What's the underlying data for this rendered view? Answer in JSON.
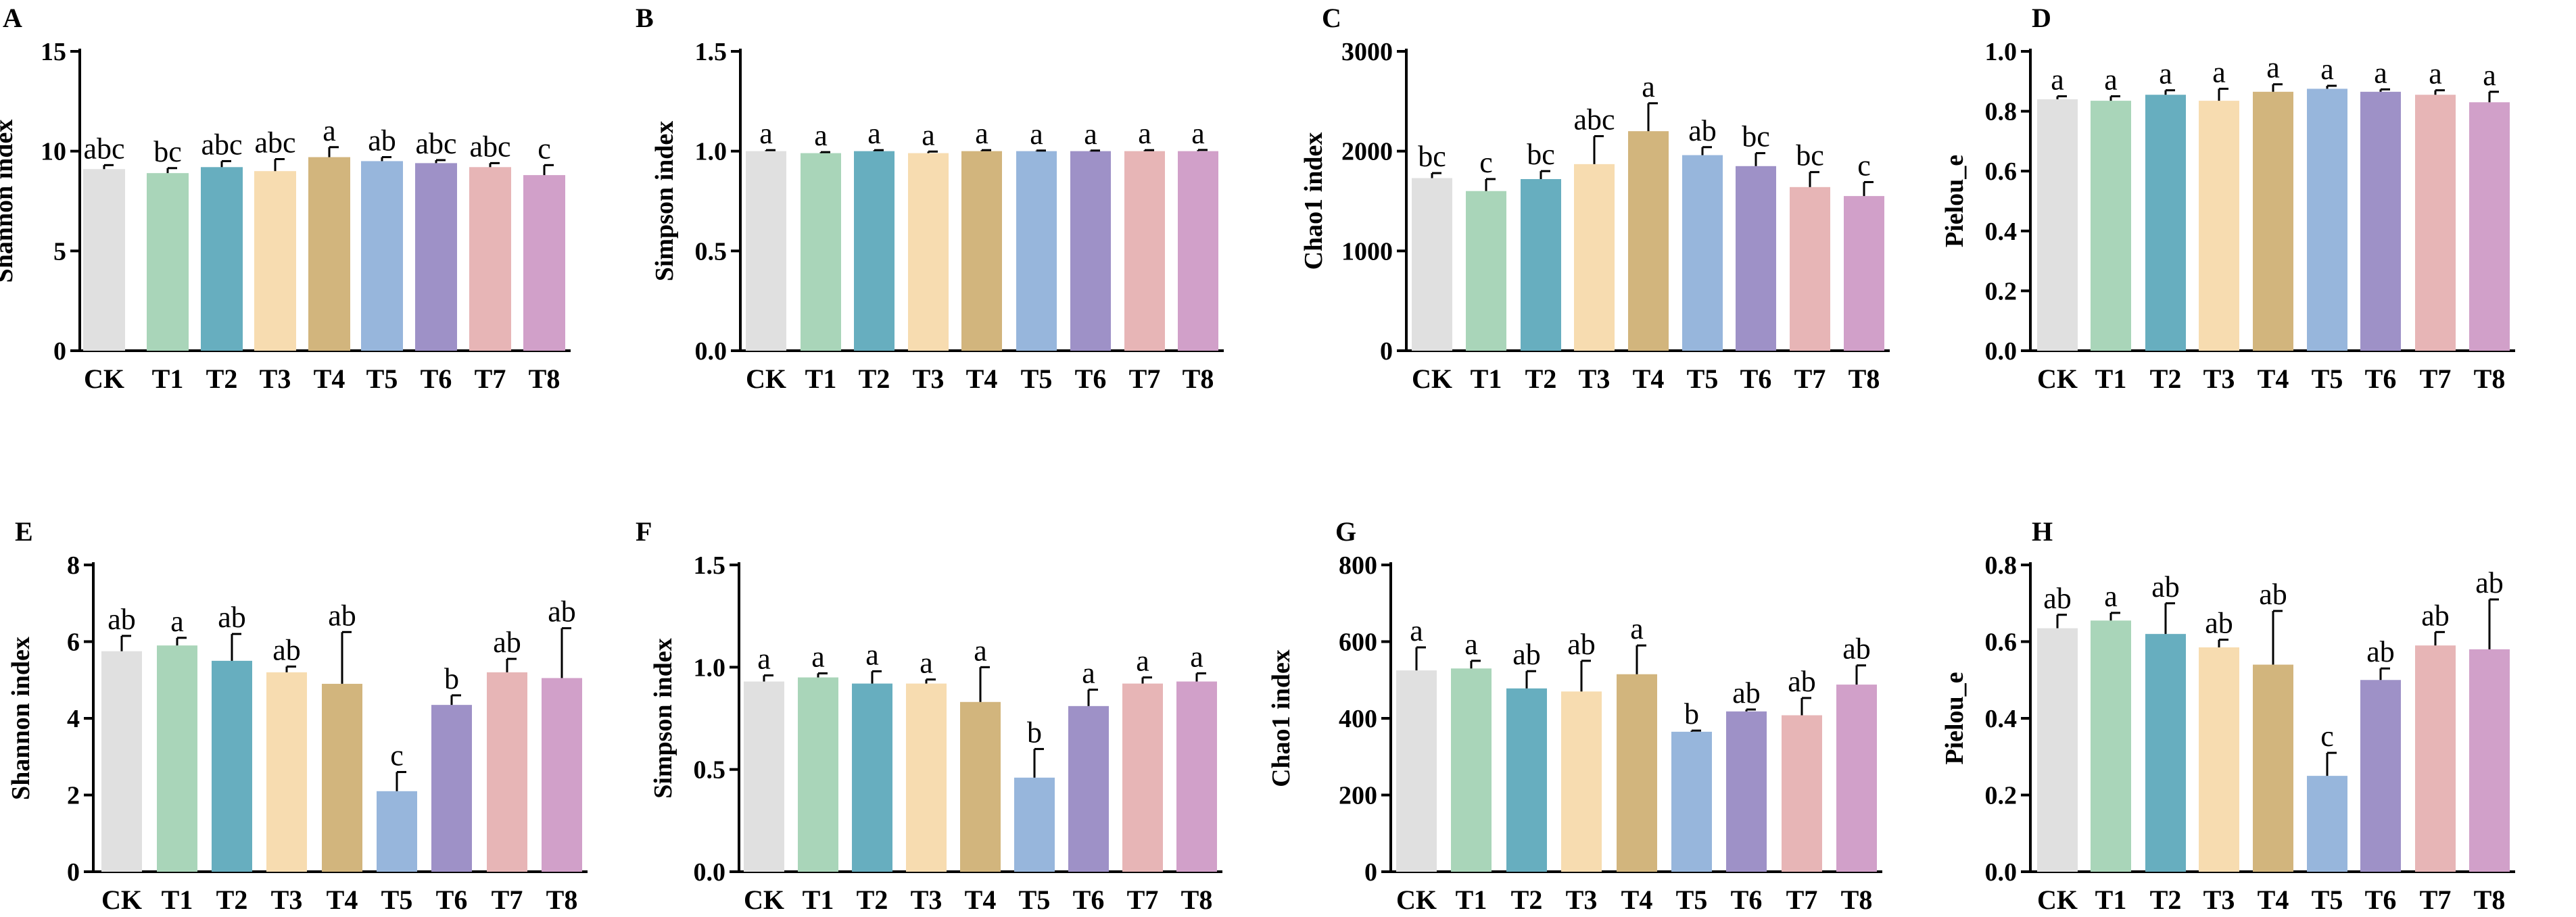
{
  "colors": [
    "#e0e0e0",
    "#a9d5b9",
    "#67aebf",
    "#f7dcb0",
    "#d2b57d",
    "#97b6dc",
    "#9e91c7",
    "#e7b5b6",
    "#d1a0c9"
  ],
  "chart_data": [
    {
      "type": "bar",
      "panel": "A",
      "title": "",
      "ylabel": "Shannon index",
      "xlabel": "",
      "ylim": [
        0,
        15
      ],
      "yticks": [
        0,
        5,
        10,
        15
      ],
      "ytick_labels": [
        "0",
        "5",
        "10",
        "15"
      ],
      "categories": [
        "CK",
        "T1",
        "T2",
        "T3",
        "T4",
        "T5",
        "T6",
        "T7",
        "T8"
      ],
      "values": [
        9.1,
        8.9,
        9.2,
        9.0,
        9.7,
        9.5,
        9.4,
        9.2,
        8.8
      ],
      "errors": [
        0.2,
        0.25,
        0.3,
        0.6,
        0.5,
        0.2,
        0.15,
        0.2,
        0.5
      ],
      "significance": [
        "abc",
        "bc",
        "abc",
        "abc",
        "a",
        "ab",
        "abc",
        "abc",
        "c"
      ]
    },
    {
      "type": "bar",
      "panel": "B",
      "title": "",
      "ylabel": "Simpson index",
      "xlabel": "",
      "ylim": [
        0,
        1.5
      ],
      "yticks": [
        0,
        0.5,
        1.0,
        1.5
      ],
      "ytick_labels": [
        "0.0",
        "0.5",
        "1.0",
        "1.5"
      ],
      "categories": [
        "CK",
        "T1",
        "T2",
        "T3",
        "T4",
        "T5",
        "T6",
        "T7",
        "T8"
      ],
      "values": [
        1.0,
        0.99,
        1.0,
        0.99,
        1.0,
        1.0,
        1.0,
        1.0,
        1.0
      ],
      "errors": [
        0.005,
        0.005,
        0.005,
        0.008,
        0.005,
        0.003,
        0.003,
        0.005,
        0.006
      ],
      "significance": [
        "a",
        "a",
        "a",
        "a",
        "a",
        "a",
        "a",
        "a",
        "a"
      ]
    },
    {
      "type": "bar",
      "panel": "C",
      "title": "",
      "ylabel": "Chao1 index",
      "xlabel": "",
      "ylim": [
        0,
        3000
      ],
      "yticks": [
        0,
        1000,
        2000,
        3000
      ],
      "ytick_labels": [
        "0",
        "1000",
        "2000",
        "3000"
      ],
      "categories": [
        "CK",
        "T1",
        "T2",
        "T3",
        "T4",
        "T5",
        "T6",
        "T7",
        "T8"
      ],
      "values": [
        1730,
        1600,
        1720,
        1870,
        2200,
        1960,
        1850,
        1640,
        1550
      ],
      "errors": [
        50,
        120,
        80,
        280,
        280,
        80,
        130,
        150,
        140
      ],
      "significance": [
        "bc",
        "c",
        "bc",
        "abc",
        "a",
        "ab",
        "bc",
        "bc",
        "c"
      ]
    },
    {
      "type": "bar",
      "panel": "D",
      "title": "",
      "ylabel": "Pielou_e",
      "xlabel": "",
      "ylim": [
        0,
        1.0
      ],
      "yticks": [
        0,
        0.2,
        0.4,
        0.6,
        0.8,
        1.0
      ],
      "ytick_labels": [
        "0.0",
        "0.2",
        "0.4",
        "0.6",
        "0.8",
        "1.0"
      ],
      "categories": [
        "CK",
        "T1",
        "T2",
        "T3",
        "T4",
        "T5",
        "T6",
        "T7",
        "T8"
      ],
      "values": [
        0.84,
        0.835,
        0.855,
        0.835,
        0.865,
        0.875,
        0.865,
        0.855,
        0.83
      ],
      "errors": [
        0.01,
        0.015,
        0.015,
        0.04,
        0.025,
        0.01,
        0.008,
        0.015,
        0.035
      ],
      "significance": [
        "a",
        "a",
        "a",
        "a",
        "a",
        "a",
        "a",
        "a",
        "a"
      ]
    },
    {
      "type": "bar",
      "panel": "E",
      "title": "",
      "ylabel": "Shannon index",
      "xlabel": "",
      "ylim": [
        0,
        8
      ],
      "yticks": [
        0,
        2,
        4,
        6,
        8
      ],
      "ytick_labels": [
        "0",
        "2",
        "4",
        "6",
        "8"
      ],
      "categories": [
        "CK",
        "T1",
        "T2",
        "T3",
        "T4",
        "T5",
        "T6",
        "T7",
        "T8"
      ],
      "values": [
        5.75,
        5.9,
        5.5,
        5.2,
        4.9,
        2.1,
        4.35,
        5.2,
        5.05
      ],
      "errors": [
        0.4,
        0.2,
        0.7,
        0.15,
        1.35,
        0.5,
        0.25,
        0.35,
        1.3
      ],
      "significance": [
        "ab",
        "a",
        "ab",
        "ab",
        "ab",
        "c",
        "b",
        "ab",
        "ab"
      ]
    },
    {
      "type": "bar",
      "panel": "F",
      "title": "",
      "ylabel": "Simpson index",
      "xlabel": "",
      "ylim": [
        0,
        1.5
      ],
      "yticks": [
        0,
        0.5,
        1.0,
        1.5
      ],
      "ytick_labels": [
        "0.0",
        "0.5",
        "1.0",
        "1.5"
      ],
      "categories": [
        "CK",
        "T1",
        "T2",
        "T3",
        "T4",
        "T5",
        "T6",
        "T7",
        "T8"
      ],
      "values": [
        0.93,
        0.95,
        0.92,
        0.92,
        0.83,
        0.46,
        0.81,
        0.92,
        0.93
      ],
      "errors": [
        0.03,
        0.02,
        0.06,
        0.02,
        0.17,
        0.14,
        0.08,
        0.03,
        0.04
      ],
      "significance": [
        "a",
        "a",
        "a",
        "a",
        "a",
        "b",
        "a",
        "a",
        "a"
      ]
    },
    {
      "type": "bar",
      "panel": "G",
      "title": "",
      "ylabel": "Chao1 index",
      "xlabel": "",
      "ylim": [
        0,
        800
      ],
      "yticks": [
        0,
        200,
        400,
        600,
        800
      ],
      "ytick_labels": [
        "0",
        "200",
        "400",
        "600",
        "800"
      ],
      "categories": [
        "CK",
        "T1",
        "T2",
        "T3",
        "T4",
        "T5",
        "T6",
        "T7",
        "T8"
      ],
      "values": [
        525,
        530,
        478,
        470,
        515,
        365,
        418,
        408,
        488
      ],
      "errors": [
        60,
        20,
        45,
        80,
        75,
        3,
        5,
        45,
        50
      ],
      "significance": [
        "a",
        "a",
        "ab",
        "ab",
        "a",
        "b",
        "ab",
        "ab",
        "ab"
      ]
    },
    {
      "type": "bar",
      "panel": "H",
      "title": "",
      "ylabel": "Pielou_e",
      "xlabel": "",
      "ylim": [
        0,
        0.8
      ],
      "yticks": [
        0,
        0.2,
        0.4,
        0.6,
        0.8
      ],
      "ytick_labels": [
        "0.0",
        "0.2",
        "0.4",
        "0.6",
        "0.8"
      ],
      "categories": [
        "CK",
        "T1",
        "T2",
        "T3",
        "T4",
        "T5",
        "T6",
        "T7",
        "T8"
      ],
      "values": [
        0.635,
        0.655,
        0.62,
        0.585,
        0.54,
        0.25,
        0.5,
        0.59,
        0.58
      ],
      "errors": [
        0.035,
        0.02,
        0.08,
        0.02,
        0.14,
        0.06,
        0.03,
        0.035,
        0.13
      ],
      "significance": [
        "ab",
        "a",
        "ab",
        "ab",
        "ab",
        "c",
        "ab",
        "ab",
        "ab"
      ]
    }
  ]
}
